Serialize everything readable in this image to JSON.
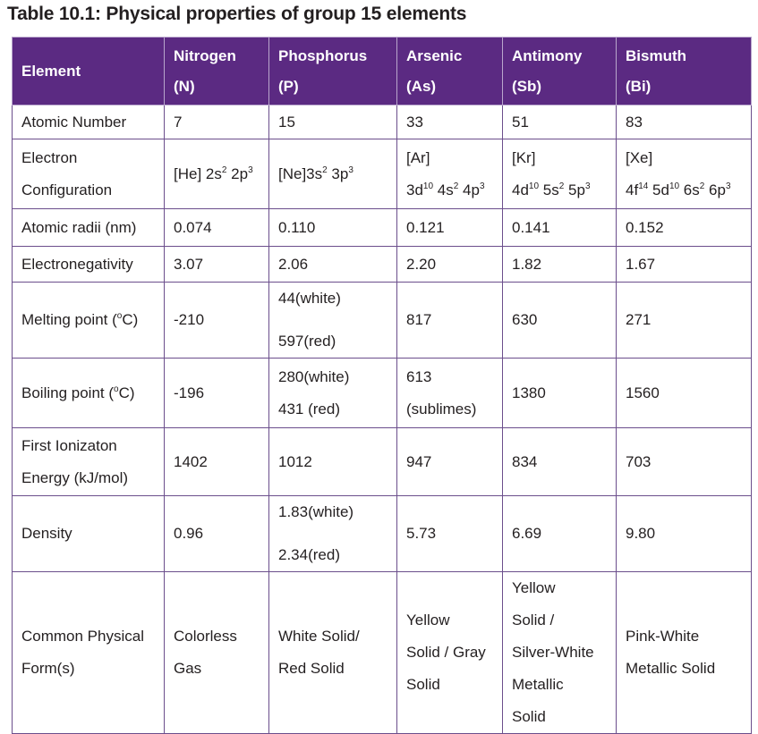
{
  "title": "Table 10.1: Physical properties of group 15 elements",
  "colors": {
    "header_bg": "#5b2a82",
    "header_text": "#ffffff",
    "border": "#6b4e8c"
  },
  "headers": {
    "element": "Element",
    "nitrogen": [
      "Nitrogen",
      "(N)"
    ],
    "phosphorus": [
      "Phosphorus",
      "(P)"
    ],
    "arsenic": [
      "Arsenic",
      "(As)"
    ],
    "antimony": [
      "Antimony",
      "(Sb)"
    ],
    "bismuth": [
      "Bismuth",
      "(Bi)"
    ]
  },
  "rows": {
    "atomic_number": {
      "label": "Atomic Number",
      "n": "7",
      "p": "15",
      "as": "33",
      "sb": "51",
      "bi": "83"
    },
    "electron_configuration": {
      "label": [
        "Electron",
        "Configuration"
      ],
      "n": {
        "a": "[He] 2s",
        "a_sup": "2",
        "b": " 2p",
        "b_sup": "3"
      },
      "p": {
        "a": "[Ne]3s",
        "a_sup": "2",
        "b": " 3p",
        "b_sup": "3"
      },
      "as": {
        "core": "[Ar]",
        "a": "3d",
        "a_sup": "10",
        "b": " 4s",
        "b_sup": "2",
        "c": " 4p",
        "c_sup": "3"
      },
      "sb": {
        "core": "[Kr]",
        "a": "4d",
        "a_sup": "10",
        "b": " 5s",
        "b_sup": "2",
        "c": " 5p",
        "c_sup": "3"
      },
      "bi": {
        "core": "[Xe]",
        "a": "4f",
        "a_sup": "14",
        "b": " 5d",
        "b_sup": "10",
        "c": " 6s",
        "c_sup": "2",
        "d": " 6p",
        "d_sup": "3"
      }
    },
    "atomic_radii": {
      "label": "Atomic radii (nm)",
      "n": "0.074",
      "p": "0.110",
      "as": "0.121",
      "sb": "0.141",
      "bi": "0.152"
    },
    "electronegativity": {
      "label": "Electronegativity",
      "n": "3.07",
      "p": "2.06",
      "as": "2.20",
      "sb": "1.82",
      "bi": "1.67"
    },
    "melting_point": {
      "label_a": "Melting point (",
      "label_sup": "o",
      "label_b": "C)",
      "n": "-210",
      "p": [
        "44(white)",
        "597(red)"
      ],
      "as": "817",
      "sb": "630",
      "bi": "271"
    },
    "boiling_point": {
      "label_a": "Boiling point (",
      "label_sup": "o",
      "label_b": "C)",
      "n": "-196",
      "p": [
        "280(white)",
        "431 (red)"
      ],
      "as": [
        "613",
        "(sublimes)"
      ],
      "sb": "1380",
      "bi": "1560"
    },
    "ionization_energy": {
      "label": [
        "First Ionizaton",
        "Energy (kJ/mol)"
      ],
      "n": "1402",
      "p": "1012",
      "as": "947",
      "sb": "834",
      "bi": "703"
    },
    "density": {
      "label": "Density",
      "n": "0.96",
      "p": [
        "1.83(white)",
        "2.34(red)"
      ],
      "as": "5.73",
      "sb": "6.69",
      "bi": "9.80"
    },
    "physical_form": {
      "label": [
        "Common Physical",
        "Form(s)"
      ],
      "n": [
        "Colorless",
        "Gas"
      ],
      "p": [
        "White Solid/",
        "Red Solid"
      ],
      "as": [
        "Yellow",
        "Solid / Gray",
        "Solid"
      ],
      "sb": [
        "Yellow",
        "Solid /",
        "Silver-White",
        "Metallic",
        "Solid"
      ],
      "bi": [
        "Pink-White",
        "Metallic Solid"
      ]
    }
  }
}
